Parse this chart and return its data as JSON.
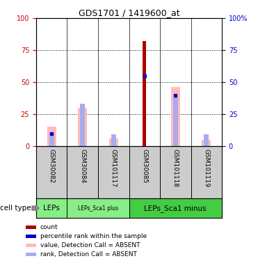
{
  "title": "GDS1701 / 1419600_at",
  "samples": [
    "GSM30082",
    "GSM30084",
    "GSM101117",
    "GSM30085",
    "GSM101118",
    "GSM101119"
  ],
  "count_values": [
    0,
    0,
    0,
    82,
    0,
    0
  ],
  "percentile_values": [
    10,
    0,
    0,
    55,
    40,
    0
  ],
  "pink_values": [
    15,
    30,
    6,
    0,
    46,
    5
  ],
  "blue_rank_values": [
    10,
    33,
    9,
    0,
    38,
    9
  ],
  "cell_type_groups": [
    {
      "label": "LEPs",
      "start": 0,
      "end": 1
    },
    {
      "label": "LEPs_Sca1 plus",
      "start": 1,
      "end": 3
    },
    {
      "label": "LEPs_Sca1 minus",
      "start": 3,
      "end": 6
    }
  ],
  "cell_type_label": "cell type",
  "ylim": [
    0,
    100
  ],
  "yticks": [
    0,
    25,
    50,
    75,
    100
  ],
  "ytick_labels_right": [
    "0",
    "25",
    "50",
    "75",
    "100%"
  ],
  "colors": {
    "count": "#aa0000",
    "percentile": "#0000cc",
    "pink": "#ffbbbb",
    "blue_rank": "#aaaaee",
    "background": "#ffffff",
    "tick_left": "#cc0000",
    "tick_right": "#0000cc",
    "label_bg": "#cccccc",
    "cell_bg_light": "#88ee88",
    "cell_bg_dark": "#44cc44"
  },
  "legend_items": [
    {
      "color": "#aa0000",
      "label": "count"
    },
    {
      "color": "#0000cc",
      "label": "percentile rank within the sample"
    },
    {
      "color": "#ffbbbb",
      "label": "value, Detection Call = ABSENT"
    },
    {
      "color": "#aaaaee",
      "label": "rank, Detection Call = ABSENT"
    }
  ]
}
